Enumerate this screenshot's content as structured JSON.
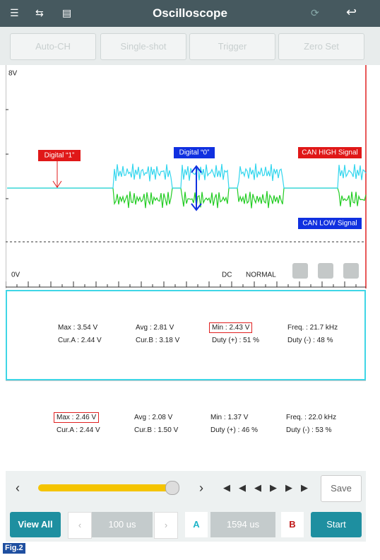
{
  "header": {
    "title": "Oscilloscope"
  },
  "toolbar": {
    "buttons": [
      "Auto-CH",
      "Single-shot",
      "Trigger",
      "Zero Set"
    ]
  },
  "scope": {
    "top_label": "8V",
    "bottom_label": "0V",
    "coupling": "DC",
    "mode": "NORMAL",
    "annotations": [
      "Digital “1”",
      "Digital “0”",
      "CAN HIGH Signal",
      "CAN LOW Signal"
    ]
  },
  "panels": [
    {
      "rows": [
        [
          "Max : 3.54 V",
          "Avg : 2.81 V",
          "Min : 2.43 V",
          "Freq. : 21.7 kHz"
        ],
        [
          "Cur.A : 2.44 V",
          "Cur.B : 3.18 V",
          "Duty (+) : 51 %",
          "Duty (-) : 48 %"
        ]
      ]
    },
    {
      "rows": [
        [
          "Max : 2.46 V",
          "Avg : 2.08 V",
          "Min : 1.37 V",
          "Freq. : 22.0 kHz"
        ],
        [
          "Cur.A : 2.44 V",
          "Cur.B : 1.50 V",
          "Duty (+) : 46 %",
          "Duty (-) : 53 %"
        ]
      ]
    }
  ],
  "controls": {
    "save": "Save",
    "view_all": "View All",
    "time_div": "100 us",
    "cursor_a": "A",
    "cursor_time": "1594 us",
    "cursor_b": "B",
    "start": "Start"
  },
  "figure_label": "Fig.2"
}
